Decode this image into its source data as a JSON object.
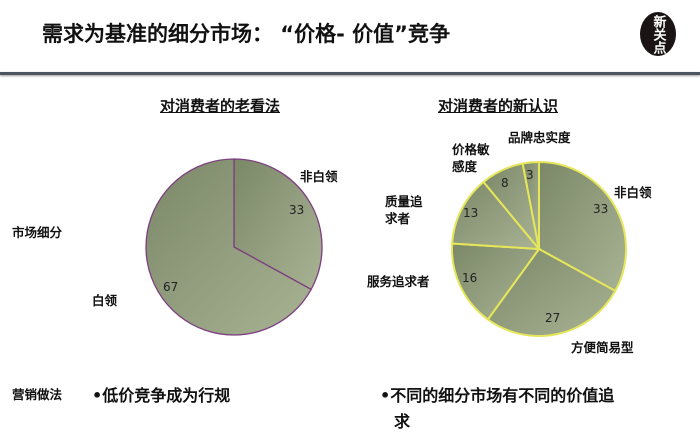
{
  "header": {
    "title": "需求为基准的细分市场：  “价格- 价值”竞争",
    "logo_text": "新关点"
  },
  "row_labels": {
    "segmentation": "市场细分",
    "marketing": "营销做法"
  },
  "colors": {
    "fill_dark": "#7b8868",
    "fill_light": "#a8b394",
    "left_stroke": "#7d3f80",
    "right_stroke": "#e6e65a"
  },
  "chart_data": [
    {
      "type": "pie",
      "title": "对消费者的老看法",
      "start": "top",
      "direction": "clockwise",
      "slices": [
        {
          "label": "非白领",
          "value": 33
        },
        {
          "label": "白领",
          "value": 67
        }
      ]
    },
    {
      "type": "pie",
      "title": "对消费者的新认识",
      "start": "top",
      "direction": "clockwise",
      "slices": [
        {
          "label": "非白领",
          "value": 33
        },
        {
          "label": "方便简易型",
          "value": 27
        },
        {
          "label": "服务追求者",
          "value": 16
        },
        {
          "label": "质量追求者",
          "value": 13
        },
        {
          "label": "价格敏感度",
          "value": 8
        },
        {
          "label": "品牌忠实度",
          "value": 3
        }
      ]
    }
  ],
  "bullets": {
    "left": "•低价竞争成为行规",
    "right_line1": "•不同的细分市场有不同的价值追",
    "right_line2": "求"
  }
}
